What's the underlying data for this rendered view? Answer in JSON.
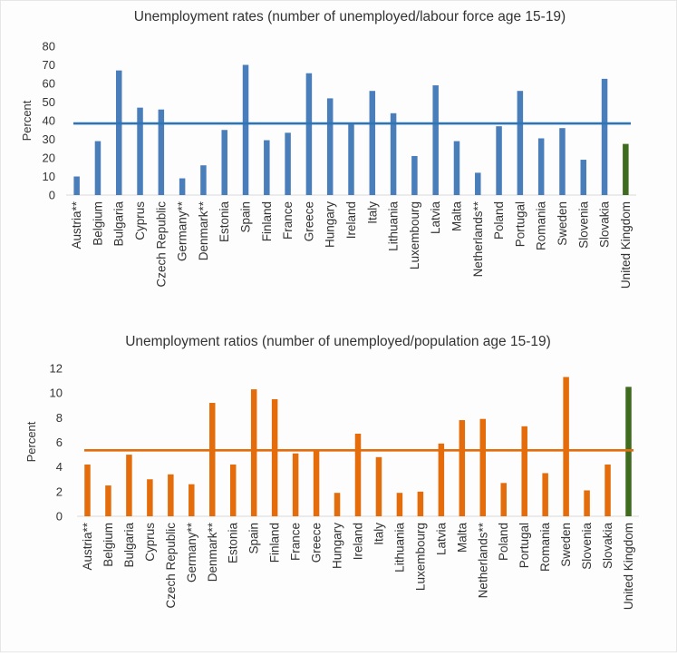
{
  "chart_data": [
    {
      "type": "bar",
      "title": "Unemployment  rates (number of unemployed/labour force age 15-19)",
      "ylabel": "Percent",
      "xlabel": "",
      "ylim": [
        0,
        80
      ],
      "yticks": [
        0,
        10,
        20,
        30,
        40,
        50,
        60,
        70,
        80
      ],
      "grid": false,
      "legend": "none",
      "categories": [
        "Austria**",
        "Belgium",
        "Bulgaria",
        "Cyprus",
        "Czech Republic",
        "Germany**",
        "Denmark**",
        "Estonia",
        "Spain",
        "Finland",
        "France",
        "Greece",
        "Hungary",
        "Ireland",
        "Italy",
        "Lithuania",
        "Luxembourg",
        "Latvia",
        "Malta",
        "Netherlands**",
        "Poland",
        "Portugal",
        "Romania",
        "Sweden",
        "Slovenia",
        "Slovakia",
        "United Kingdom"
      ],
      "values": [
        10,
        29,
        67,
        47,
        46,
        9,
        16,
        35,
        70,
        29.5,
        33.5,
        65.5,
        52,
        38,
        56,
        44,
        21,
        59,
        29,
        12,
        37,
        56,
        30.5,
        36,
        19,
        62.5,
        27.5
      ],
      "reference_line": 38.5,
      "bar_color": "#4a7ebb",
      "highlight_color": "#3e6b1e",
      "highlight_category": "United Kingdom"
    },
    {
      "type": "bar",
      "title": "Unemployment  ratios (number of unemployed/population  age 15-19)",
      "ylabel": "Percent",
      "xlabel": "",
      "ylim": [
        0,
        12
      ],
      "yticks": [
        0,
        2,
        4,
        6,
        8,
        10,
        12
      ],
      "grid": false,
      "legend": "none",
      "categories": [
        "Austria**",
        "Belgium",
        "Bulgaria",
        "Cyprus",
        "Czech Republic",
        "Germany**",
        "Denmark**",
        "Estonia",
        "Spain",
        "Finland",
        "France",
        "Greece",
        "Hungary",
        "Ireland",
        "Italy",
        "Lithuania",
        "Luxembourg",
        "Latvia",
        "Malta",
        "Netherlands**",
        "Poland",
        "Portugal",
        "Romania",
        "Sweden",
        "Slovenia",
        "Slovakia",
        "United Kingdom"
      ],
      "values": [
        4.2,
        2.5,
        5.0,
        3.0,
        3.4,
        2.6,
        9.2,
        4.2,
        10.3,
        9.5,
        5.1,
        5.3,
        1.9,
        6.7,
        4.8,
        1.9,
        2.0,
        5.9,
        7.8,
        7.9,
        2.7,
        7.3,
        3.5,
        11.3,
        2.1,
        4.2,
        10.5
      ],
      "reference_line": 5.35,
      "bar_color": "#e46c0a",
      "highlight_color": "#3e6b1e",
      "highlight_category": "United Kingdom"
    }
  ]
}
